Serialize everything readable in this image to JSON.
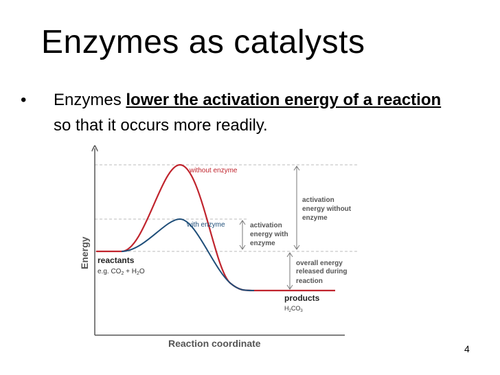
{
  "slide": {
    "title": "Enzymes as catalysts",
    "bullet_prefix": "Enzymes ",
    "bullet_emphasis": "lower the activation energy of a reaction",
    "bullet_suffix": " so that it occurs more readily.",
    "slide_number": "4"
  },
  "diagram": {
    "y_axis_label": "Energy",
    "x_axis_label": "Reaction coordinate",
    "curve_without_enzyme_label": "without enzyme",
    "curve_with_enzyme_label": "with enzyme",
    "reactants_label": "reactants",
    "reactants_example_prefix": "e.g. CO",
    "reactants_example_sub1": "2",
    "reactants_example_mid": " + H",
    "reactants_example_sub2": "2",
    "reactants_example_suffix": "O",
    "products_label": "products",
    "products_formula_prefix": "H",
    "products_formula_sub1": "2",
    "products_formula_mid": "CO",
    "products_formula_sub2": "3",
    "activation_with_enzyme": [
      "activation",
      "energy with",
      "enzyme"
    ],
    "activation_without_enzyme": [
      "activation",
      "energy without",
      "enzyme"
    ],
    "overall_energy": [
      "overall energy",
      "released during",
      "reaction"
    ],
    "colors": {
      "without_enzyme": "#c0242d",
      "with_enzyme": "#1f4e79",
      "axis": "#444444",
      "annotation": "#444444",
      "dashed": "#bbbbbb"
    }
  }
}
